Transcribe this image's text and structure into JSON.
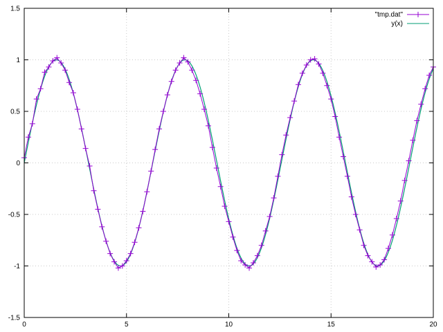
{
  "chart_data": {
    "type": "line",
    "title": "",
    "xlabel": "",
    "ylabel": "",
    "xlim": [
      0,
      20
    ],
    "ylim": [
      -1.5,
      1.5
    ],
    "x_ticks": [
      0,
      5,
      10,
      15,
      20
    ],
    "y_ticks": [
      -1.5,
      -1,
      -0.5,
      0,
      0.5,
      1,
      1.5
    ],
    "x_tick_labels": [
      "0",
      "5",
      "10",
      "15",
      "20"
    ],
    "y_tick_labels": [
      "-1.5",
      "-1",
      "-0.5",
      "0",
      "0.5",
      "1",
      "1.5"
    ],
    "grid": true,
    "legend_position": "top-right",
    "series": [
      {
        "name": "\"tmp.dat\"",
        "style": "linespoints",
        "marker": "plus",
        "color": "#9400d3",
        "x": [
          0.0,
          0.2,
          0.4,
          0.6,
          0.8,
          1.0,
          1.2,
          1.4,
          1.6,
          1.8,
          2.0,
          2.2,
          2.4,
          2.6,
          2.8,
          3.0,
          3.2,
          3.4,
          3.6,
          3.8,
          4.0,
          4.2,
          4.4,
          4.6,
          4.8,
          5.0,
          5.2,
          5.4,
          5.6,
          5.8,
          6.0,
          6.2,
          6.4,
          6.6,
          6.8,
          7.0,
          7.2,
          7.4,
          7.6,
          7.8,
          8.0,
          8.2,
          8.4,
          8.6,
          8.8,
          9.0,
          9.2,
          9.4,
          9.6,
          9.8,
          10.0,
          10.2,
          10.4,
          10.6,
          10.8,
          11.0,
          11.2,
          11.4,
          11.6,
          11.8,
          12.0,
          12.2,
          12.4,
          12.6,
          12.8,
          13.0,
          13.2,
          13.4,
          13.6,
          13.8,
          14.0,
          14.2,
          14.4,
          14.6,
          14.8,
          15.0,
          15.2,
          15.4,
          15.6,
          15.8,
          16.0,
          16.2,
          16.4,
          16.6,
          16.8,
          17.0,
          17.2,
          17.4,
          17.6,
          17.8,
          18.0,
          18.2,
          18.4,
          18.6,
          18.8,
          19.0,
          19.2,
          19.4,
          19.6,
          19.8,
          20.0
        ],
        "y": [
          0.05,
          0.25,
          0.38,
          0.62,
          0.72,
          0.88,
          0.93,
          0.99,
          1.02,
          0.97,
          0.9,
          0.78,
          0.68,
          0.52,
          0.33,
          0.14,
          -0.03,
          -0.27,
          -0.45,
          -0.62,
          -0.76,
          -0.88,
          -0.96,
          -1.02,
          -1.0,
          -0.95,
          -0.88,
          -0.77,
          -0.63,
          -0.47,
          -0.28,
          -0.08,
          0.13,
          0.33,
          0.5,
          0.66,
          0.79,
          0.9,
          0.97,
          1.02,
          0.98,
          0.9,
          0.8,
          0.67,
          0.52,
          0.36,
          0.15,
          -0.05,
          -0.23,
          -0.42,
          -0.57,
          -0.72,
          -0.85,
          -0.95,
          -0.99,
          -1.02,
          -0.97,
          -0.9,
          -0.8,
          -0.66,
          -0.52,
          -0.34,
          -0.13,
          0.08,
          0.27,
          0.44,
          0.6,
          0.76,
          0.87,
          0.95,
          1.0,
          1.01,
          0.96,
          0.87,
          0.75,
          0.62,
          0.45,
          0.25,
          0.06,
          -0.13,
          -0.33,
          -0.5,
          -0.65,
          -0.8,
          -0.9,
          -0.96,
          -1.01,
          -0.99,
          -0.94,
          -0.83,
          -0.7,
          -0.54,
          -0.37,
          -0.17,
          0.02,
          0.22,
          0.41,
          0.57,
          0.72,
          0.85,
          0.93
        ]
      },
      {
        "name": "y(x)",
        "style": "lines",
        "color": "#009e73",
        "function": "sin(x)",
        "x_range": [
          0,
          20
        ]
      }
    ]
  }
}
